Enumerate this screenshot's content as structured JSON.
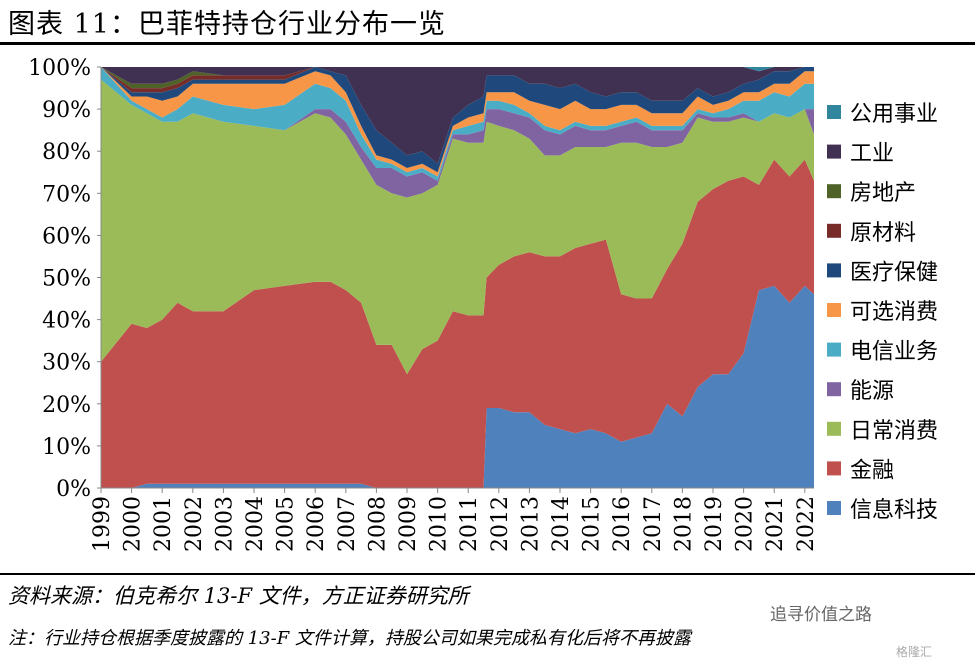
{
  "header": {
    "title": "图表 11：巴菲特持仓行业分布一览"
  },
  "footer": {
    "source": "资料来源：伯克希尔 13-F 文件，方正证券研究所",
    "note": "注：行业持仓根据季度披露的 13-F 文件计算，持股公司如果完成私有化后将不再披露",
    "watermark": "追寻价值之路",
    "watermark2": "格隆汇"
  },
  "chart_data": {
    "type": "area",
    "stacked": true,
    "percent": true,
    "title": "",
    "xlabel": "",
    "ylabel": "",
    "ylim": [
      0,
      100
    ],
    "yticks": [
      "0%",
      "10%",
      "20%",
      "30%",
      "40%",
      "50%",
      "60%",
      "70%",
      "80%",
      "90%",
      "100%"
    ],
    "xticks": [
      "1999",
      "2000",
      "2001",
      "2002",
      "2003",
      "2004",
      "2005",
      "2006",
      "2007",
      "2008",
      "2009",
      "2010",
      "2011",
      "2012",
      "2013",
      "2014",
      "2015",
      "2016",
      "2017",
      "2018",
      "2019",
      "2020",
      "2021",
      "2022"
    ],
    "legend_position": "right",
    "grid": false,
    "x": [
      1999.0,
      2000.0,
      2000.5,
      2001.0,
      2001.5,
      2002.0,
      2003.0,
      2004.0,
      2005.0,
      2006.0,
      2006.5,
      2007.0,
      2007.5,
      2008.0,
      2008.5,
      2009.0,
      2009.5,
      2010.0,
      2010.5,
      2011.0,
      2011.5,
      2011.6,
      2012.0,
      2012.5,
      2013.0,
      2013.5,
      2014.0,
      2014.5,
      2015.0,
      2015.5,
      2016.0,
      2016.5,
      2017.0,
      2017.5,
      2018.0,
      2018.5,
      2019.0,
      2019.5,
      2020.0,
      2020.5,
      2021.0,
      2021.5,
      2022.0,
      2022.3
    ],
    "series": [
      {
        "name": "信息科技",
        "color": "#4F81BD",
        "values": [
          0,
          0,
          1,
          1,
          1,
          1,
          1,
          1,
          1,
          1,
          1,
          1,
          1,
          0,
          0,
          0,
          0,
          0,
          0,
          0,
          0,
          19,
          19,
          18,
          18,
          15,
          14,
          13,
          14,
          13,
          11,
          12,
          13,
          20,
          17,
          24,
          27,
          27,
          32,
          47,
          48,
          44,
          48,
          46
        ]
      },
      {
        "name": "金融",
        "color": "#C0504D",
        "values": [
          30,
          39,
          37,
          39,
          43,
          41,
          41,
          46,
          47,
          48,
          48,
          46,
          43,
          34,
          34,
          27,
          33,
          35,
          42,
          41,
          41,
          31,
          34,
          37,
          38,
          40,
          41,
          44,
          44,
          46,
          35,
          33,
          32,
          32,
          41,
          44,
          44,
          46,
          42,
          25,
          30,
          30,
          30,
          27
        ]
      },
      {
        "name": "日常消费",
        "color": "#9BBB59",
        "values": [
          67,
          52,
          51,
          47,
          43,
          47,
          45,
          39,
          37,
          40,
          39,
          37,
          34,
          38,
          36,
          42,
          37,
          37,
          41,
          41,
          41,
          37,
          33,
          30,
          27,
          24,
          24,
          24,
          23,
          22,
          36,
          37,
          36,
          29,
          24,
          20,
          16,
          14,
          14,
          15,
          11,
          14,
          12,
          11
        ]
      },
      {
        "name": "能源",
        "color": "#8064A2",
        "values": [
          0,
          0,
          0,
          0,
          0,
          0,
          0,
          0,
          0,
          1,
          2,
          3,
          3,
          4,
          6,
          5,
          5,
          1,
          1,
          2,
          3,
          3,
          4,
          4,
          5,
          6,
          5,
          5,
          4,
          4,
          4,
          5,
          4,
          4,
          3,
          1,
          1,
          1,
          1,
          0,
          0,
          0,
          0,
          6
        ]
      },
      {
        "name": "电信业务",
        "color": "#4BACC6",
        "values": [
          3,
          1,
          1,
          1,
          3,
          4,
          4,
          4,
          6,
          6,
          5,
          5,
          3,
          2,
          1,
          1,
          1,
          1,
          1,
          2,
          2,
          2,
          2,
          2,
          1,
          1,
          1,
          1,
          1,
          1,
          1,
          1,
          1,
          1,
          1,
          1,
          1,
          2,
          3,
          5,
          5,
          5,
          6,
          6
        ]
      },
      {
        "name": "可选消费",
        "color": "#F79646",
        "values": [
          0,
          1,
          3,
          4,
          3,
          3,
          5,
          6,
          5,
          3,
          3,
          2,
          2,
          1,
          1,
          1,
          1,
          1,
          1,
          2,
          2,
          2,
          2,
          3,
          3,
          5,
          5,
          5,
          4,
          4,
          4,
          3,
          3,
          3,
          3,
          3,
          2,
          2,
          2,
          2,
          2,
          3,
          3,
          3
        ]
      },
      {
        "name": "医疗保健",
        "color": "#1F497D",
        "values": [
          0,
          1,
          1,
          2,
          2,
          1,
          1,
          1,
          1,
          1,
          1,
          4,
          5,
          6,
          4,
          3,
          3,
          2,
          2,
          3,
          4,
          4,
          4,
          4,
          4,
          5,
          5,
          4,
          4,
          3,
          3,
          3,
          3,
          3,
          3,
          2,
          2,
          2,
          2,
          3,
          3,
          3,
          1,
          1
        ]
      },
      {
        "name": "原材料",
        "color": "#772C2A",
        "values": [
          0,
          1,
          1,
          1,
          1,
          1,
          1,
          1,
          1,
          0,
          0,
          0,
          0,
          0,
          0,
          0,
          0,
          0,
          0,
          0,
          0,
          0,
          0,
          0,
          0,
          0,
          0,
          0,
          0,
          0,
          0,
          0,
          0,
          0,
          0,
          0,
          0,
          0,
          0,
          0,
          0,
          0,
          0,
          0
        ]
      },
      {
        "name": "房地产",
        "color": "#4F6228",
        "values": [
          0,
          1,
          1,
          1,
          1,
          1,
          0,
          0,
          0,
          0,
          0,
          0,
          0,
          0,
          0,
          0,
          0,
          0,
          0,
          0,
          0,
          0,
          0,
          0,
          0,
          0,
          0,
          0,
          0,
          0,
          0,
          0,
          0,
          0,
          0,
          0,
          0,
          0,
          0,
          0,
          0,
          0,
          0,
          0
        ]
      },
      {
        "name": "工业",
        "color": "#403152",
        "values": [
          0,
          4,
          4,
          4,
          3,
          1,
          2,
          2,
          2,
          0,
          1,
          2,
          9,
          15,
          18,
          21,
          20,
          23,
          12,
          9,
          7,
          2,
          2,
          2,
          4,
          4,
          5,
          4,
          6,
          7,
          6,
          6,
          8,
          8,
          8,
          5,
          7,
          6,
          4,
          2,
          1,
          1,
          0,
          0
        ]
      },
      {
        "name": "公用事业",
        "color": "#31859C",
        "values": [
          0,
          0,
          0,
          0,
          0,
          0,
          0,
          0,
          0,
          0,
          0,
          0,
          0,
          0,
          0,
          0,
          0,
          0,
          0,
          0,
          0,
          0,
          0,
          0,
          0,
          0,
          0,
          0,
          0,
          0,
          0,
          0,
          0,
          0,
          0,
          0,
          0,
          0,
          0,
          1,
          0,
          0,
          0,
          0
        ]
      }
    ],
    "legend_order": [
      "公用事业",
      "工业",
      "房地产",
      "原材料",
      "医疗保健",
      "可选消费",
      "电信业务",
      "能源",
      "日常消费",
      "金融",
      "信息科技"
    ]
  }
}
